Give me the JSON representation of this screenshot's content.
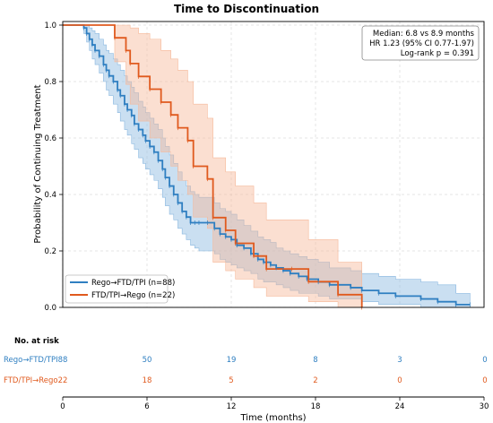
{
  "chart_data": {
    "type": "line",
    "subtype": "kaplan-meier",
    "title": "Time to Discontinuation",
    "xlabel": "Time (months)",
    "ylabel": "Probability of Continuing Treatment",
    "xlim": [
      0,
      30
    ],
    "ylim": [
      0,
      1.0
    ],
    "xticks": [
      0,
      6,
      12,
      18,
      24,
      30
    ],
    "yticks": [
      0.0,
      0.2,
      0.4,
      0.6,
      0.8,
      1.0
    ],
    "grid": true,
    "legend_position": "bottom-left",
    "annotation": [
      "Median: 6.8 vs 8.9 months",
      "HR 1.23 (95% CI 0.77-1.97)",
      "Log-rank p = 0.391"
    ],
    "series": [
      {
        "name": "Rego→FTD/TPI (n=88)",
        "color": "#2f7fc1",
        "band_color": "#8ab8e0",
        "x": [
          0,
          1.5,
          1.7,
          1.9,
          2.1,
          2.3,
          2.6,
          2.9,
          3.1,
          3.3,
          3.6,
          3.9,
          4.1,
          4.4,
          4.6,
          4.9,
          5.1,
          5.4,
          5.7,
          5.9,
          6.2,
          6.5,
          6.8,
          7.1,
          7.3,
          7.6,
          7.9,
          8.2,
          8.5,
          8.8,
          9.1,
          9.4,
          9.7,
          10.3,
          10.8,
          11.2,
          11.6,
          12,
          12.4,
          12.9,
          13.4,
          13.9,
          14.3,
          14.8,
          15.2,
          15.7,
          16.2,
          16.8,
          17.4,
          18.2,
          19,
          20.5,
          21.3,
          22.5,
          23.7,
          25.5,
          26.7,
          28,
          29
        ],
        "y": [
          1.0,
          0.99,
          0.97,
          0.95,
          0.93,
          0.91,
          0.89,
          0.86,
          0.84,
          0.82,
          0.8,
          0.77,
          0.75,
          0.72,
          0.7,
          0.68,
          0.65,
          0.63,
          0.61,
          0.59,
          0.57,
          0.55,
          0.52,
          0.49,
          0.46,
          0.43,
          0.4,
          0.37,
          0.34,
          0.32,
          0.3,
          0.3,
          0.3,
          0.3,
          0.28,
          0.26,
          0.25,
          0.24,
          0.22,
          0.21,
          0.19,
          0.17,
          0.16,
          0.15,
          0.14,
          0.13,
          0.12,
          0.11,
          0.1,
          0.09,
          0.08,
          0.07,
          0.06,
          0.05,
          0.04,
          0.03,
          0.02,
          0.01,
          0.01
        ],
        "lower": [
          1.0,
          0.97,
          0.94,
          0.91,
          0.88,
          0.86,
          0.83,
          0.8,
          0.77,
          0.75,
          0.72,
          0.69,
          0.66,
          0.63,
          0.61,
          0.58,
          0.56,
          0.53,
          0.51,
          0.49,
          0.47,
          0.45,
          0.42,
          0.39,
          0.36,
          0.33,
          0.31,
          0.28,
          0.26,
          0.24,
          0.22,
          0.21,
          0.2,
          0.2,
          0.19,
          0.17,
          0.16,
          0.15,
          0.14,
          0.13,
          0.12,
          0.1,
          0.09,
          0.09,
          0.08,
          0.07,
          0.06,
          0.05,
          0.05,
          0.04,
          0.03,
          0.03,
          0.02,
          0.01,
          0.01,
          0.0,
          0.0,
          0.0,
          0.0
        ],
        "upper": [
          1.0,
          1.0,
          1.0,
          0.99,
          0.98,
          0.97,
          0.95,
          0.93,
          0.91,
          0.9,
          0.88,
          0.86,
          0.84,
          0.82,
          0.8,
          0.78,
          0.76,
          0.73,
          0.71,
          0.69,
          0.67,
          0.65,
          0.63,
          0.6,
          0.57,
          0.54,
          0.51,
          0.48,
          0.45,
          0.43,
          0.41,
          0.4,
          0.39,
          0.39,
          0.37,
          0.35,
          0.34,
          0.33,
          0.31,
          0.29,
          0.27,
          0.25,
          0.24,
          0.23,
          0.21,
          0.2,
          0.19,
          0.18,
          0.17,
          0.16,
          0.14,
          0.13,
          0.12,
          0.11,
          0.1,
          0.09,
          0.08,
          0.05,
          0.05
        ]
      },
      {
        "name": "FTD/TPI→Rego (n=22)",
        "color": "#e05a1e",
        "band_color": "#f6b99a",
        "x": [
          0,
          3.7,
          4.5,
          4.8,
          5.4,
          6.2,
          7.0,
          7.7,
          8.2,
          8.9,
          9.3,
          10.3,
          10.7,
          11.6,
          12.3,
          13.6,
          14.5,
          16.3,
          17.5,
          19.6,
          21.3
        ],
        "y": [
          1.0,
          0.955,
          0.91,
          0.864,
          0.818,
          0.773,
          0.727,
          0.682,
          0.636,
          0.591,
          0.5,
          0.455,
          0.318,
          0.273,
          0.227,
          0.182,
          0.136,
          0.136,
          0.091,
          0.045,
          0.0
        ],
        "lower": [
          1.0,
          0.87,
          0.79,
          0.72,
          0.66,
          0.6,
          0.55,
          0.5,
          0.45,
          0.4,
          0.32,
          0.28,
          0.16,
          0.13,
          0.1,
          0.07,
          0.04,
          0.04,
          0.02,
          0.0,
          0.0
        ],
        "upper": [
          1.0,
          1.0,
          1.0,
          0.99,
          0.97,
          0.95,
          0.91,
          0.88,
          0.84,
          0.8,
          0.72,
          0.67,
          0.53,
          0.48,
          0.43,
          0.37,
          0.31,
          0.31,
          0.24,
          0.16,
          0.16
        ]
      }
    ]
  },
  "risk_table": {
    "title": "No. at risk",
    "times": [
      6,
      12,
      18,
      24,
      30
    ],
    "rows": [
      {
        "label": "Rego→FTD/TPI88",
        "color": "#2f7fc1",
        "values": [
          "50",
          "19",
          "8",
          "3",
          "0"
        ]
      },
      {
        "label": "FTD/TPI→Rego22",
        "color": "#e05a1e",
        "values": [
          "18",
          "5",
          "2",
          "0",
          "0"
        ]
      }
    ]
  }
}
